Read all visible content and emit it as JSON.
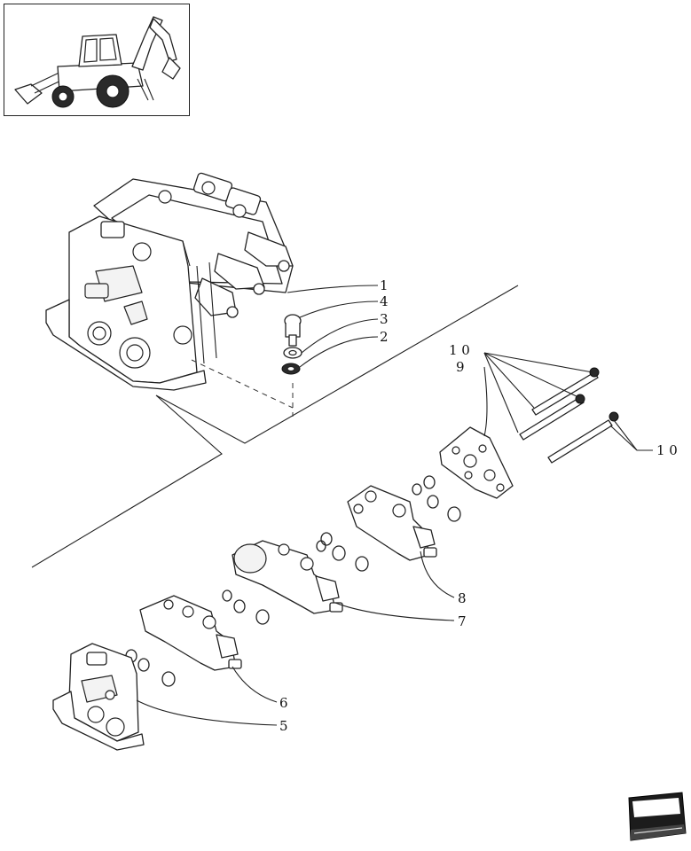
{
  "diagram": {
    "callouts": [
      {
        "id": "c1",
        "text": "1"
      },
      {
        "id": "c4",
        "text": "4"
      },
      {
        "id": "c3",
        "text": "3"
      },
      {
        "id": "c2",
        "text": "2"
      },
      {
        "id": "c10a",
        "text": "1 0"
      },
      {
        "id": "c9",
        "text": "9"
      },
      {
        "id": "c10b",
        "text": "1 0"
      },
      {
        "id": "c8",
        "text": "8"
      },
      {
        "id": "c7",
        "text": "7"
      },
      {
        "id": "c6",
        "text": "6"
      },
      {
        "id": "c5",
        "text": "5"
      }
    ]
  },
  "thumbnail": {
    "icon": "backhoe-loader-icon"
  },
  "navigation": {
    "icon": "book-nav-icon"
  }
}
